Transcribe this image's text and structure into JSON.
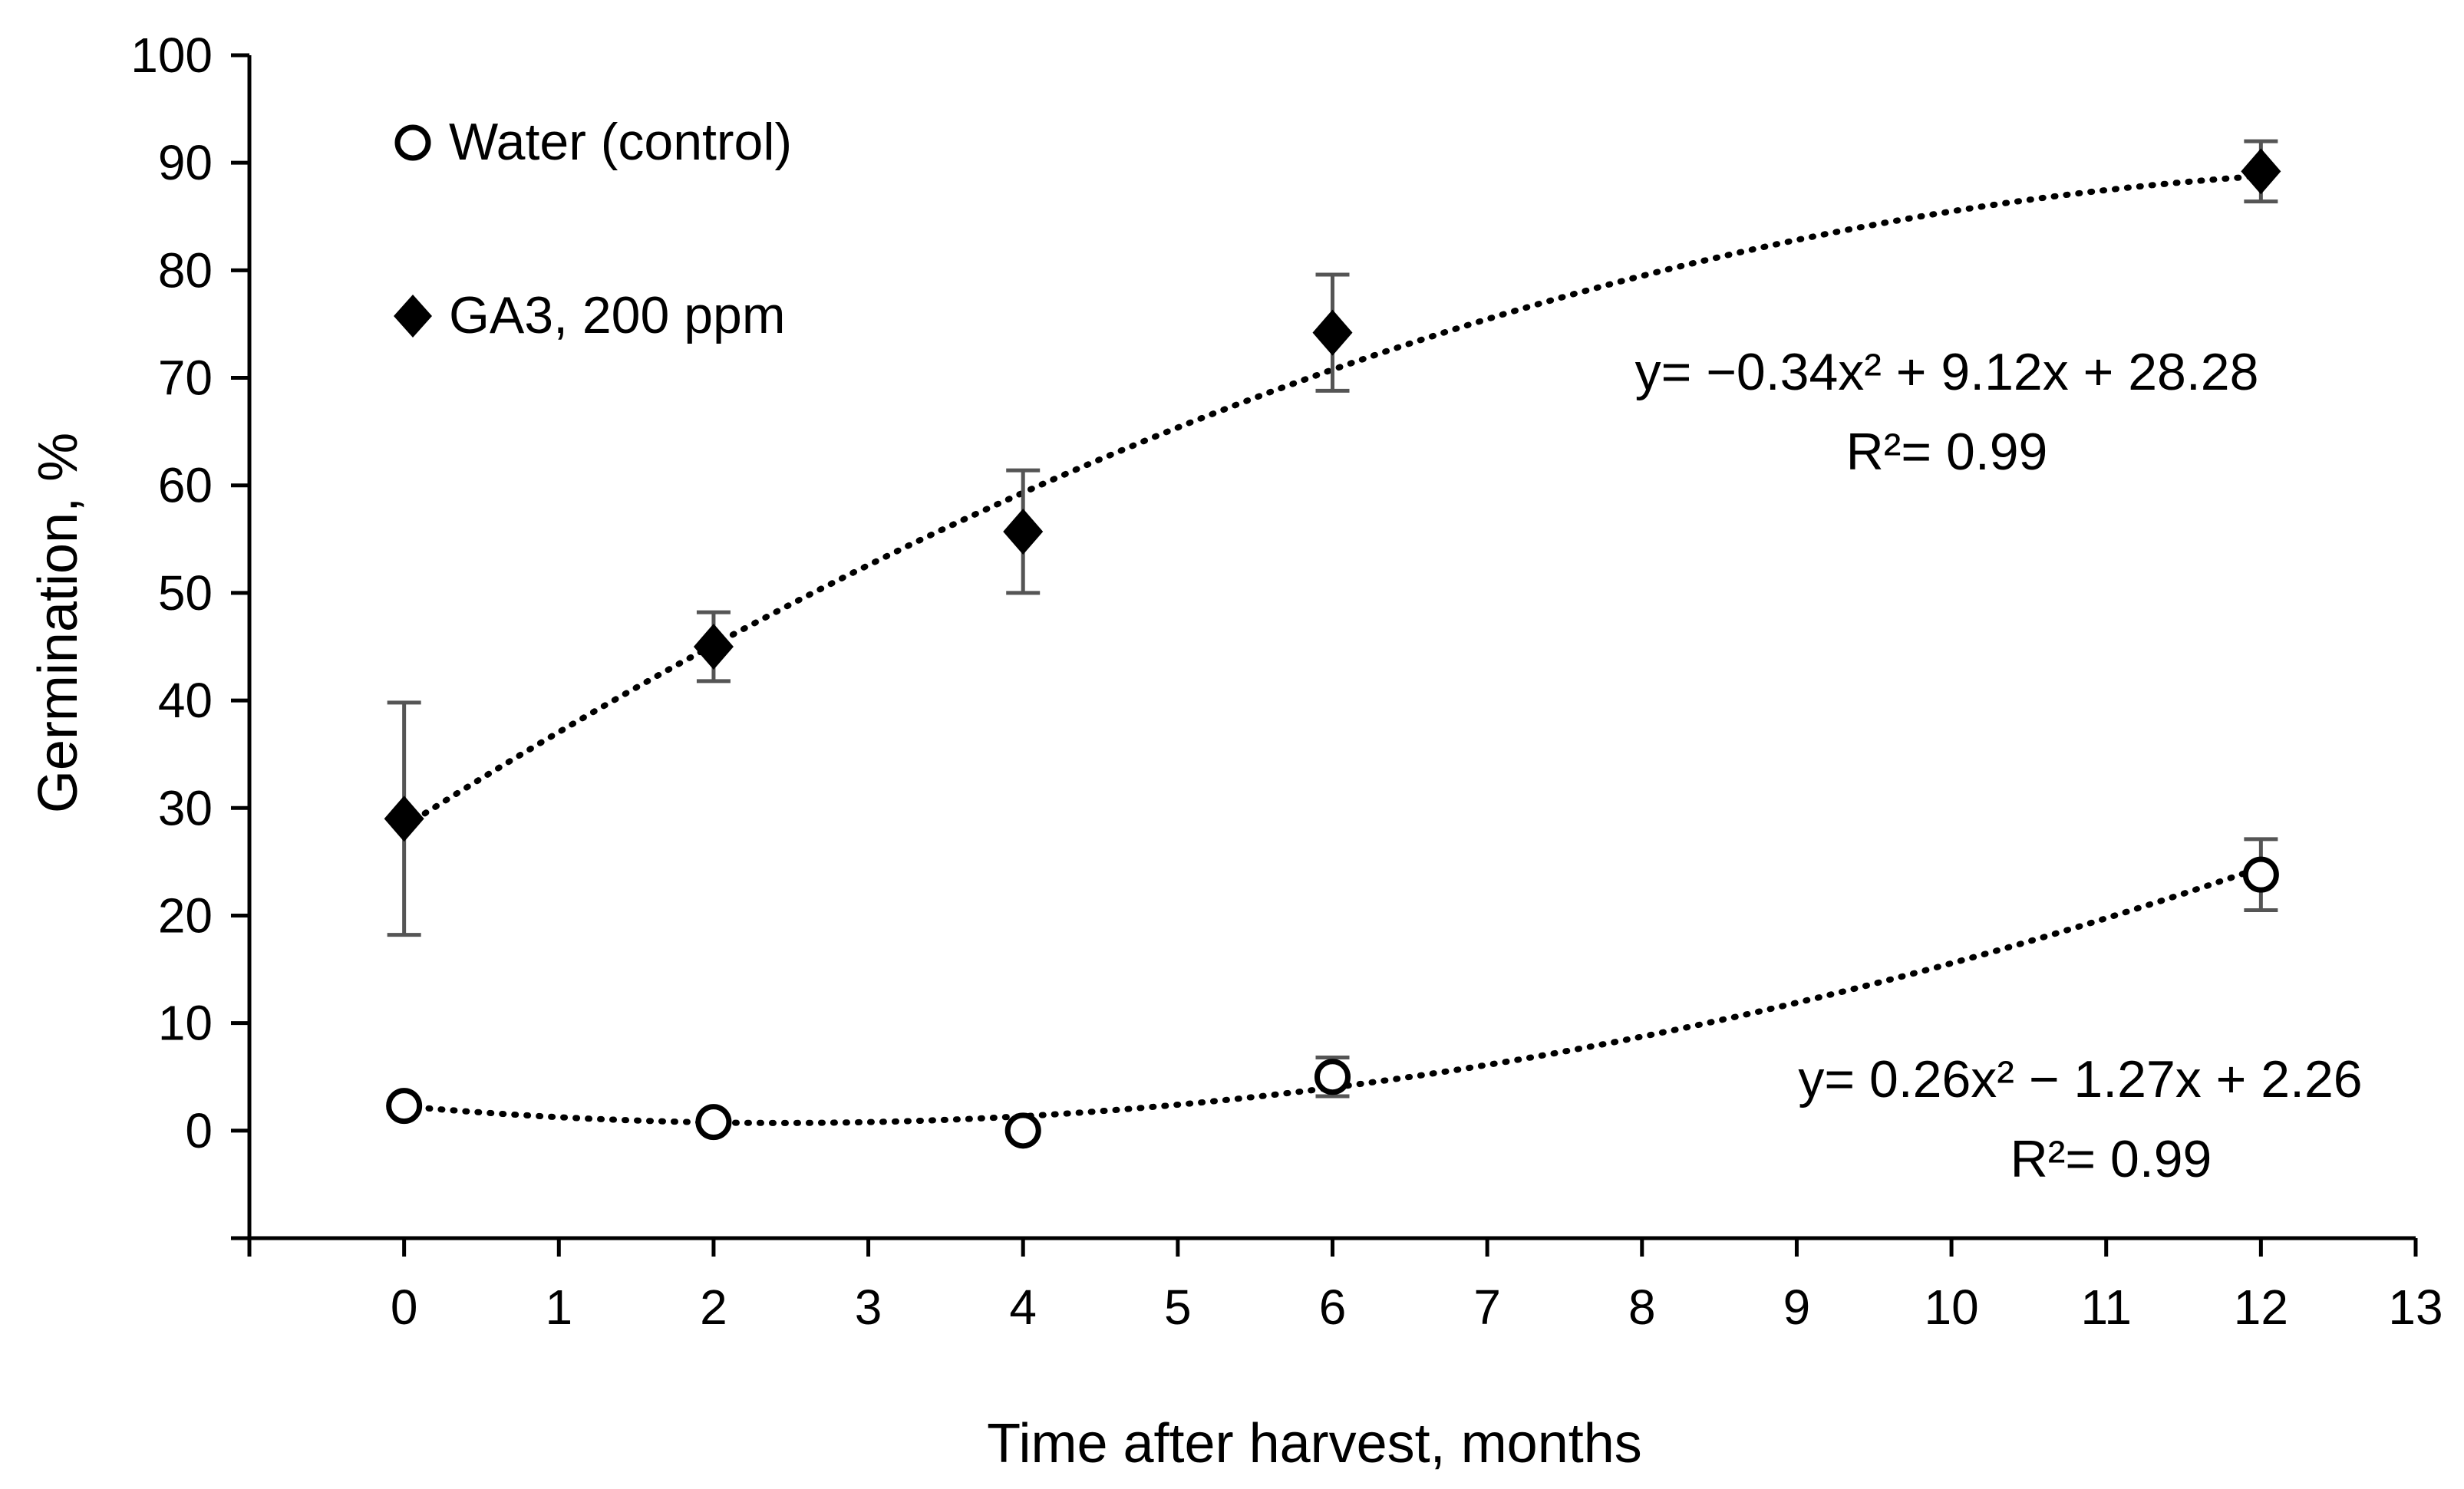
{
  "chart_data": {
    "type": "scatter",
    "title": "",
    "xlabel": "Time after harvest, months",
    "ylabel": "Germination, %",
    "xlim": [
      -1,
      13
    ],
    "ylim": [
      -10,
      100
    ],
    "x_ticks": [
      0,
      1,
      2,
      3,
      4,
      5,
      6,
      7,
      8,
      9,
      10,
      11,
      12,
      13
    ],
    "y_ticks": [
      0,
      10,
      20,
      30,
      40,
      50,
      60,
      70,
      80,
      90,
      100
    ],
    "grid": false,
    "legend_position": "top-left",
    "series": [
      {
        "name": "Water (control)",
        "marker": "circle",
        "x": [
          0,
          2,
          4,
          6,
          12
        ],
        "y": [
          2.3,
          0.8,
          0,
          5,
          23.8
        ],
        "err": [
          0,
          0,
          0,
          1.8,
          3.3
        ],
        "trendline": {
          "equation": "y= 0.26x² − 1.27x + 2.26",
          "r2": "R²= 0.99",
          "a": 0.26,
          "b": -1.27,
          "c": 2.26
        }
      },
      {
        "name": "GA3, 200 ppm",
        "marker": "diamond",
        "x": [
          0,
          2,
          4,
          6,
          12
        ],
        "y": [
          29,
          45,
          55.7,
          74.2,
          89.2
        ],
        "err": [
          10.8,
          3.2,
          5.7,
          5.4,
          2.8
        ],
        "trendline": {
          "equation": "y= −0.34x² + 9.12x + 28.28",
          "r2": "R²= 0.99",
          "a": -0.34,
          "b": 9.12,
          "c": 28.28
        }
      }
    ]
  }
}
